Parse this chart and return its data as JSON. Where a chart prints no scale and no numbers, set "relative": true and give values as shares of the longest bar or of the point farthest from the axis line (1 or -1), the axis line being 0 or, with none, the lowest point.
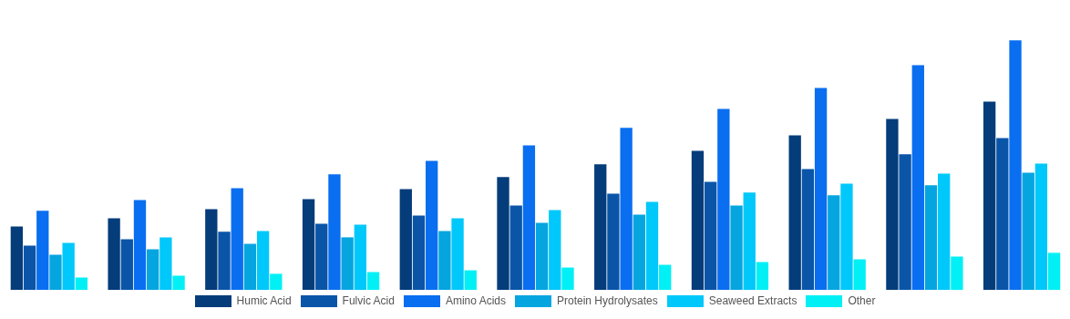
{
  "chart_data": {
    "type": "bar",
    "relative": true,
    "legend": "bottom",
    "categories": [
      null,
      null,
      null,
      null,
      null,
      null,
      null,
      null,
      null,
      null,
      null
    ],
    "series": [
      {
        "name": "Humic Acid",
        "color": "#053c7a",
        "values": [
          0.255,
          0.288,
          0.325,
          0.365,
          0.405,
          0.453,
          0.504,
          0.558,
          0.62,
          0.686,
          0.755
        ]
      },
      {
        "name": "Fulvic Acid",
        "color": "#0a55a8",
        "values": [
          0.179,
          0.204,
          0.234,
          0.266,
          0.299,
          0.339,
          0.387,
          0.434,
          0.485,
          0.544,
          0.609
        ]
      },
      {
        "name": "Amino Acids",
        "color": "#0a6ef0",
        "values": [
          0.318,
          0.361,
          0.409,
          0.464,
          0.518,
          0.58,
          0.65,
          0.726,
          0.81,
          0.901,
          1
        ]
      },
      {
        "name": "Protein Hydrolysates",
        "color": "#05a5e0",
        "values": [
          0.142,
          0.164,
          0.186,
          0.212,
          0.237,
          0.27,
          0.303,
          0.339,
          0.38,
          0.42,
          0.471
        ]
      },
      {
        "name": "Seaweed Extracts",
        "color": "#00c8fa",
        "values": [
          0.19,
          0.212,
          0.237,
          0.263,
          0.288,
          0.321,
          0.354,
          0.391,
          0.427,
          0.467,
          0.507
        ]
      },
      {
        "name": "Other",
        "color": "#00f0f5",
        "values": [
          0.051,
          0.058,
          0.066,
          0.073,
          0.08,
          0.091,
          0.102,
          0.113,
          0.124,
          0.135,
          0.15
        ]
      }
    ]
  }
}
